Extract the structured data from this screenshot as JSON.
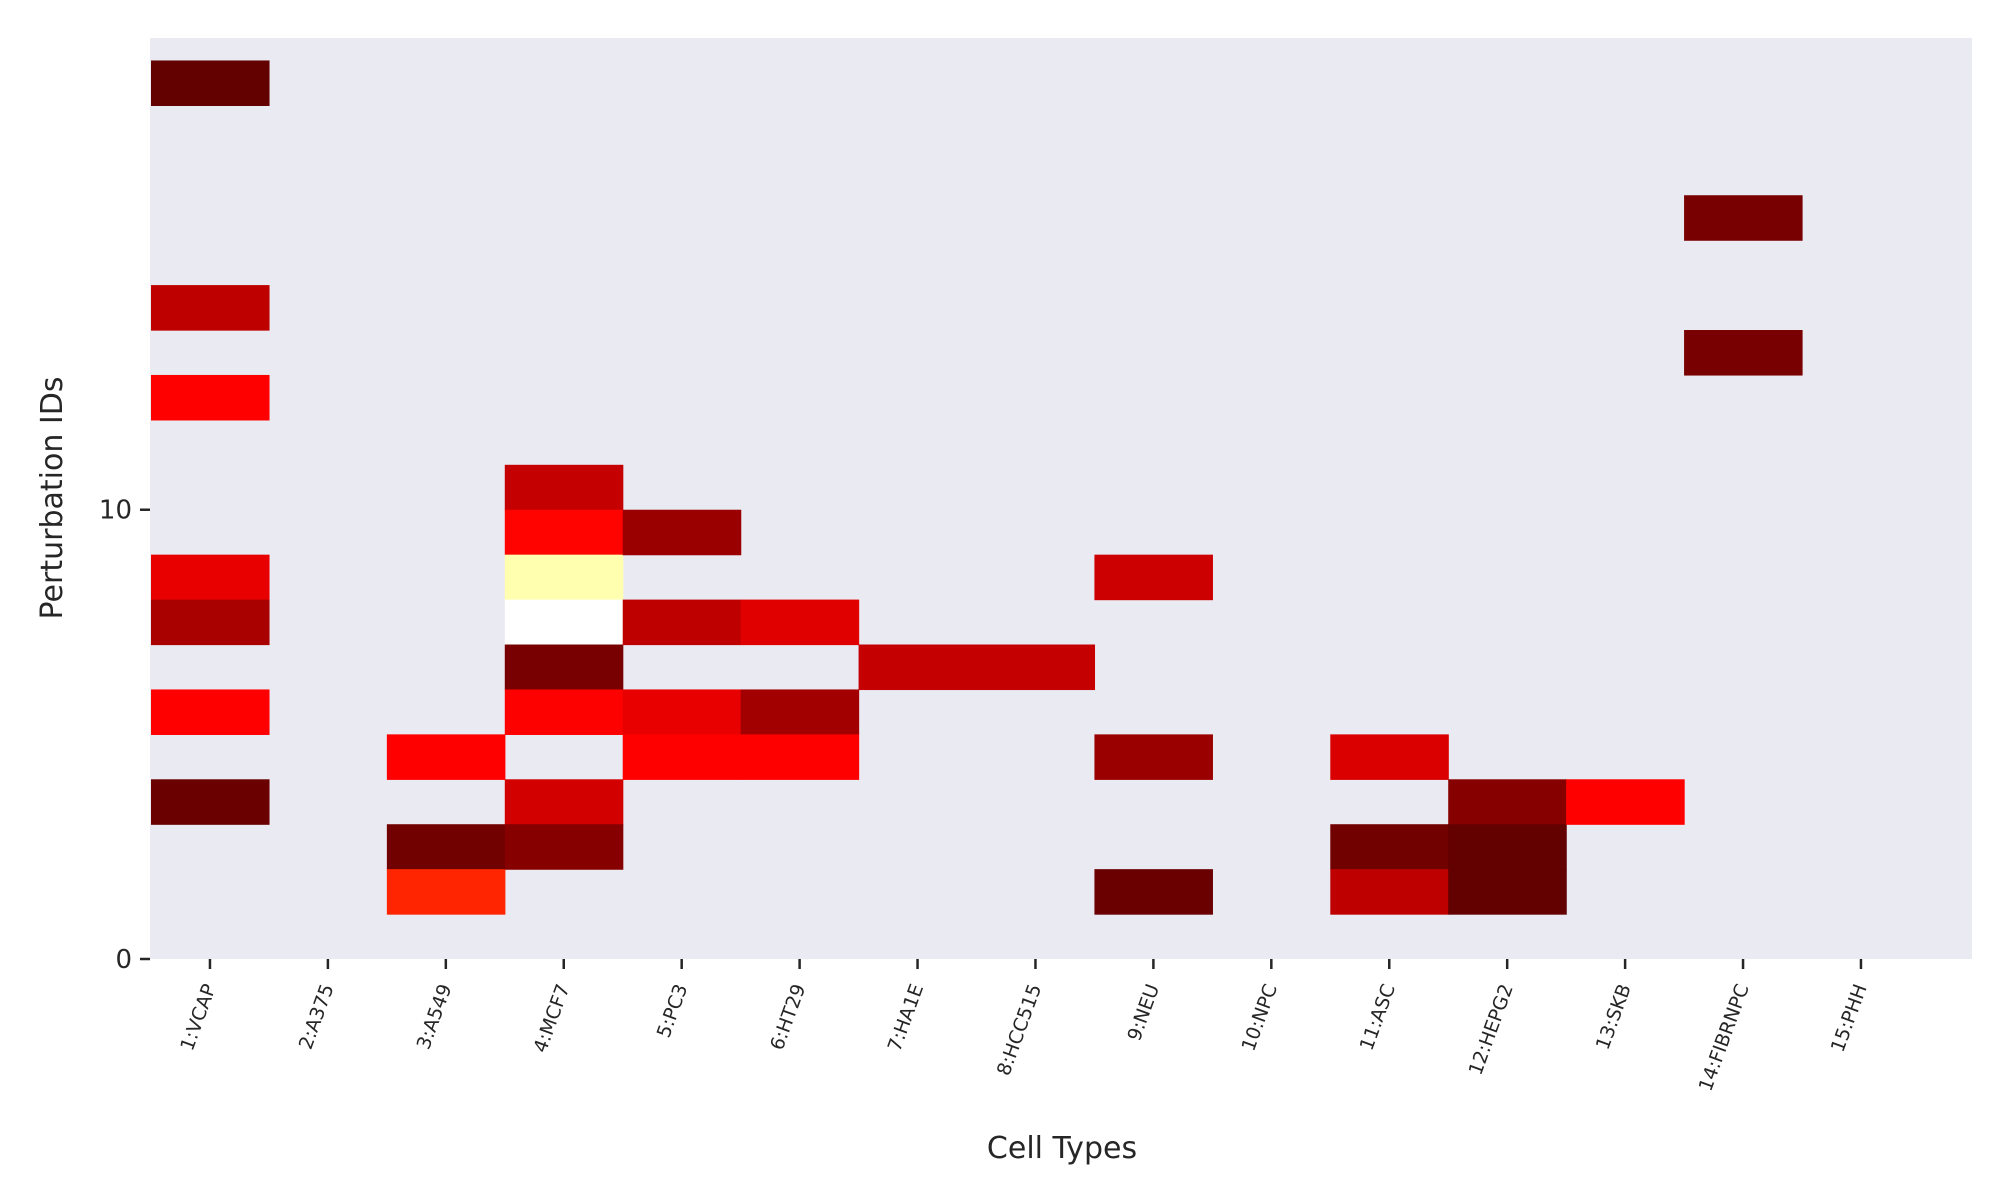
{
  "chart_data": {
    "type": "heatmap",
    "title": "",
    "xlabel": "Cell Types",
    "ylabel": "Perturbation IDs",
    "x_categories": [
      "1:VCAP",
      "2:A375",
      "3:A549",
      "4:MCF7",
      "5:PC3",
      "6:HT29",
      "7:HA1E",
      "8:HCC515",
      "9:NEU",
      "10:NPC",
      "11:ASC",
      "12:HEPG2",
      "13:SKB",
      "14:FIBRNPC",
      "15:PHH"
    ],
    "ylim": [
      0,
      20.5
    ],
    "y_ticks": [
      {
        "value": 0,
        "label": "0"
      },
      {
        "value": 10,
        "label": "10"
      }
    ],
    "grid": false,
    "colormap": "hot",
    "background_color": "#eaeaf2",
    "cells": [
      {
        "col": 0,
        "row": 19,
        "level": 0.1
      },
      {
        "col": 0,
        "row": 14,
        "level": 0.23
      },
      {
        "col": 0,
        "row": 12,
        "level": 0.33
      },
      {
        "col": 0,
        "row": 8,
        "level": 0.29
      },
      {
        "col": 0,
        "row": 7,
        "level": 0.2
      },
      {
        "col": 0,
        "row": 5,
        "level": 0.33
      },
      {
        "col": 0,
        "row": 3,
        "level": 0.11
      },
      {
        "col": 2,
        "row": 4,
        "level": 0.33
      },
      {
        "col": 2,
        "row": 2,
        "level": 0.12
      },
      {
        "col": 2,
        "row": 1,
        "level": 0.42
      },
      {
        "col": 3,
        "row": 10,
        "level": 0.24
      },
      {
        "col": 3,
        "row": 9,
        "level": 0.37
      },
      {
        "col": 3,
        "row": 8,
        "level": 0.92
      },
      {
        "col": 3,
        "row": 7,
        "level": 1.0
      },
      {
        "col": 3,
        "row": 6,
        "level": 0.13
      },
      {
        "col": 3,
        "row": 5,
        "level": 0.32
      },
      {
        "col": 3,
        "row": 3,
        "level": 0.26
      },
      {
        "col": 3,
        "row": 2,
        "level": 0.15
      },
      {
        "col": 4,
        "row": 9,
        "level": 0.18
      },
      {
        "col": 4,
        "row": 7,
        "level": 0.23
      },
      {
        "col": 4,
        "row": 5,
        "level": 0.29
      },
      {
        "col": 4,
        "row": 4,
        "level": 0.34
      },
      {
        "col": 5,
        "row": 7,
        "level": 0.28
      },
      {
        "col": 5,
        "row": 5,
        "level": 0.19
      },
      {
        "col": 5,
        "row": 4,
        "level": 0.34
      },
      {
        "col": 6,
        "row": 6,
        "level": 0.24
      },
      {
        "col": 7,
        "row": 6,
        "level": 0.24
      },
      {
        "col": 8,
        "row": 8,
        "level": 0.25
      },
      {
        "col": 8,
        "row": 4,
        "level": 0.18
      },
      {
        "col": 8,
        "row": 1,
        "level": 0.11
      },
      {
        "col": 10,
        "row": 4,
        "level": 0.27
      },
      {
        "col": 10,
        "row": 2,
        "level": 0.12
      },
      {
        "col": 10,
        "row": 1,
        "level": 0.23
      },
      {
        "col": 11,
        "row": 3,
        "level": 0.15
      },
      {
        "col": 11,
        "row": 2,
        "level": 0.1
      },
      {
        "col": 11,
        "row": 1,
        "level": 0.1
      },
      {
        "col": 12,
        "row": 3,
        "level": 0.35
      },
      {
        "col": 13,
        "row": 16,
        "level": 0.13
      },
      {
        "col": 13,
        "row": 13,
        "level": 0.13
      }
    ]
  }
}
